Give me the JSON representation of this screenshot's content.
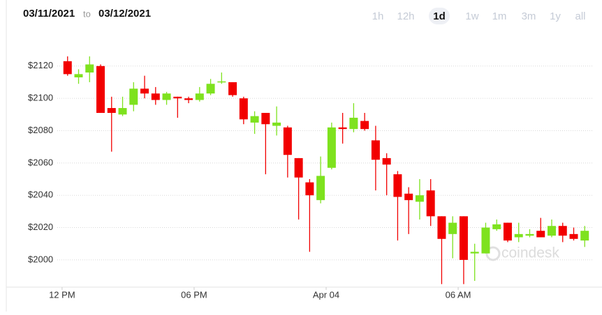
{
  "header": {
    "from": "03/11/2021",
    "separator": "to",
    "to": "03/12/2021"
  },
  "ranges": [
    "1h",
    "12h",
    "1d",
    "1w",
    "1m",
    "3m",
    "1y",
    "all"
  ],
  "selected_range": 2,
  "chart_data": {
    "type": "candlestick",
    "watermark": "coindesk",
    "up_color": "#7ee21e",
    "down_color": "#f20000",
    "grid": true,
    "xlim": [
      -0.25,
      24.25
    ],
    "xticks": [
      {
        "value": 0,
        "label": "12 PM"
      },
      {
        "value": 6,
        "label": "06 PM"
      },
      {
        "value": 12,
        "label": "Apr 04"
      },
      {
        "value": 18,
        "label": "06 AM"
      }
    ],
    "ylim": [
      1984,
      2135
    ],
    "yticks": [
      {
        "value": 2000,
        "label": "$2000"
      },
      {
        "value": 2020,
        "label": "$2020"
      },
      {
        "value": 2040,
        "label": "$2040"
      },
      {
        "value": 2060,
        "label": "$2060"
      },
      {
        "value": 2080,
        "label": "$2080"
      },
      {
        "value": 2100,
        "label": "$2100"
      },
      {
        "value": 2120,
        "label": "$2120"
      }
    ],
    "x": [
      0.25,
      0.75,
      1.25,
      1.75,
      2.25,
      2.75,
      3.25,
      3.75,
      4.25,
      4.75,
      5.25,
      5.75,
      6.25,
      6.75,
      7.25,
      7.75,
      8.25,
      8.75,
      9.25,
      9.75,
      10.25,
      10.75,
      11.25,
      11.75,
      12.25,
      12.75,
      13.25,
      13.75,
      14.25,
      14.75,
      15.25,
      15.75,
      16.25,
      16.75,
      17.25,
      17.75,
      18.25,
      18.75,
      19.25,
      19.75,
      20.25,
      20.75,
      21.25,
      21.75,
      22.25,
      22.75,
      23.25,
      23.75
    ],
    "open": [
      2123,
      2113,
      2116,
      2120,
      2094,
      2090,
      2096,
      2106,
      2103,
      2099,
      2101,
      2100,
      2099,
      2103,
      2110,
      2110,
      2100,
      2085,
      2091,
      2083,
      2082,
      2063,
      2048,
      2037,
      2057,
      2082,
      2081,
      2086,
      2074,
      2063,
      2053,
      2041,
      2036,
      2043,
      2027,
      2016,
      2027,
      2004,
      2004,
      2019,
      2023,
      2014,
      2015,
      2018,
      2015,
      2021,
      2016,
      2012
    ],
    "high": [
      2126,
      2118,
      2126,
      2121,
      2101,
      2101,
      2110,
      2114,
      2107,
      2104,
      2101,
      2101,
      2107,
      2112,
      2116,
      2110,
      2101,
      2092,
      2091,
      2095,
      2083,
      2063,
      2050,
      2064,
      2085,
      2091,
      2097,
      2091,
      2083,
      2066,
      2055,
      2045,
      2050,
      2050,
      2027,
      2027,
      2027,
      2010,
      2023,
      2025,
      2023,
      2023,
      2019,
      2026,
      2025,
      2023,
      2020,
      2021
    ],
    "low": [
      2114,
      2109,
      2110,
      2091,
      2067,
      2089,
      2092,
      2100,
      2096,
      2096,
      2088,
      2097,
      2098,
      2102,
      2109,
      2101,
      2084,
      2078,
      2053,
      2077,
      2051,
      2025,
      2005,
      2035,
      2056,
      2072,
      2079,
      2080,
      2043,
      2040,
      2012,
      2016,
      2025,
      2021,
      1985,
      2001,
      1985,
      1987,
      2004,
      2018,
      2011,
      2011,
      2014,
      2014,
      2014,
      2011,
      2012,
      2008
    ],
    "close": [
      2115,
      2115,
      2121,
      2091,
      2091,
      2094,
      2106,
      2103,
      2099,
      2103,
      2100,
      2099,
      2103,
      2109,
      2110.5,
      2102,
      2087,
      2089,
      2084,
      2085,
      2065,
      2051,
      2040,
      2052,
      2082,
      2081,
      2088,
      2081,
      2062,
      2059,
      2039,
      2037,
      2040,
      2027,
      2013,
      2023,
      2000,
      2005,
      2020,
      2022,
      2012,
      2016,
      2016,
      2014,
      2021,
      2015,
      2013,
      2018
    ]
  }
}
